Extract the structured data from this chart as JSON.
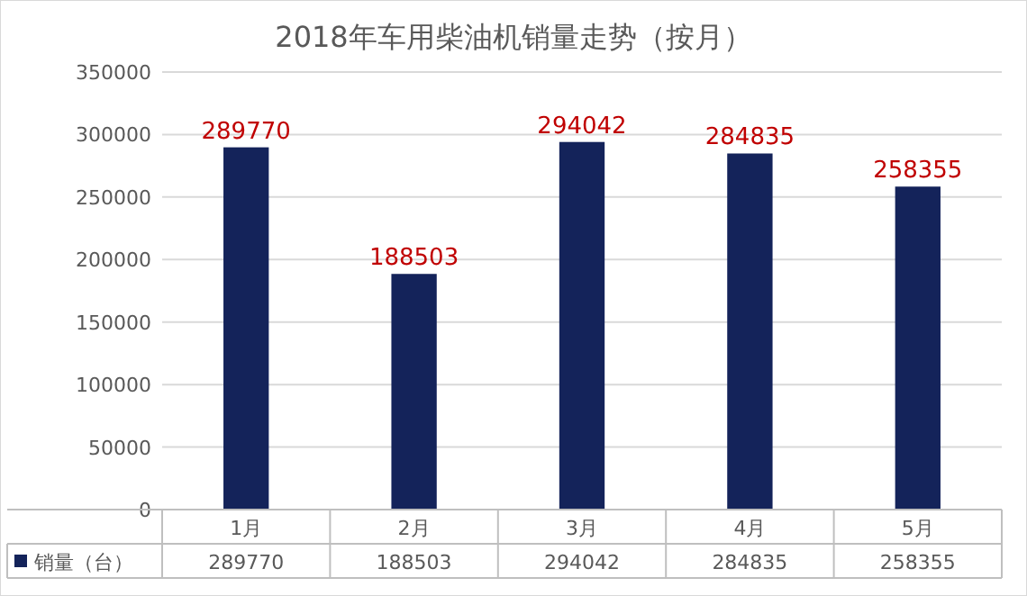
{
  "chart_data": {
    "type": "bar",
    "title": "2018年车用柴油机销量走势（按月）",
    "categories": [
      "1月",
      "2月",
      "3月",
      "4月",
      "5月"
    ],
    "series": [
      {
        "name": "销量（台）",
        "color": "#14235a",
        "values": [
          289770,
          188503,
          294042,
          284835,
          258355
        ]
      }
    ],
    "annotations": [
      {
        "text": "289770",
        "x": "1月",
        "y": 289770
      },
      {
        "text": "188503",
        "x": "2月",
        "y": 188503
      },
      {
        "text": "294042",
        "x": "3月",
        "y": 294042
      },
      {
        "text": "284835",
        "x": "4月",
        "y": 284835
      },
      {
        "text": "258355",
        "x": "5月",
        "y": 258355
      }
    ],
    "ylim": [
      0,
      350000
    ],
    "yticks": [
      0,
      50000,
      100000,
      150000,
      200000,
      250000,
      300000,
      350000
    ],
    "grid": "y",
    "data_labels": true,
    "legend": "bottom"
  }
}
